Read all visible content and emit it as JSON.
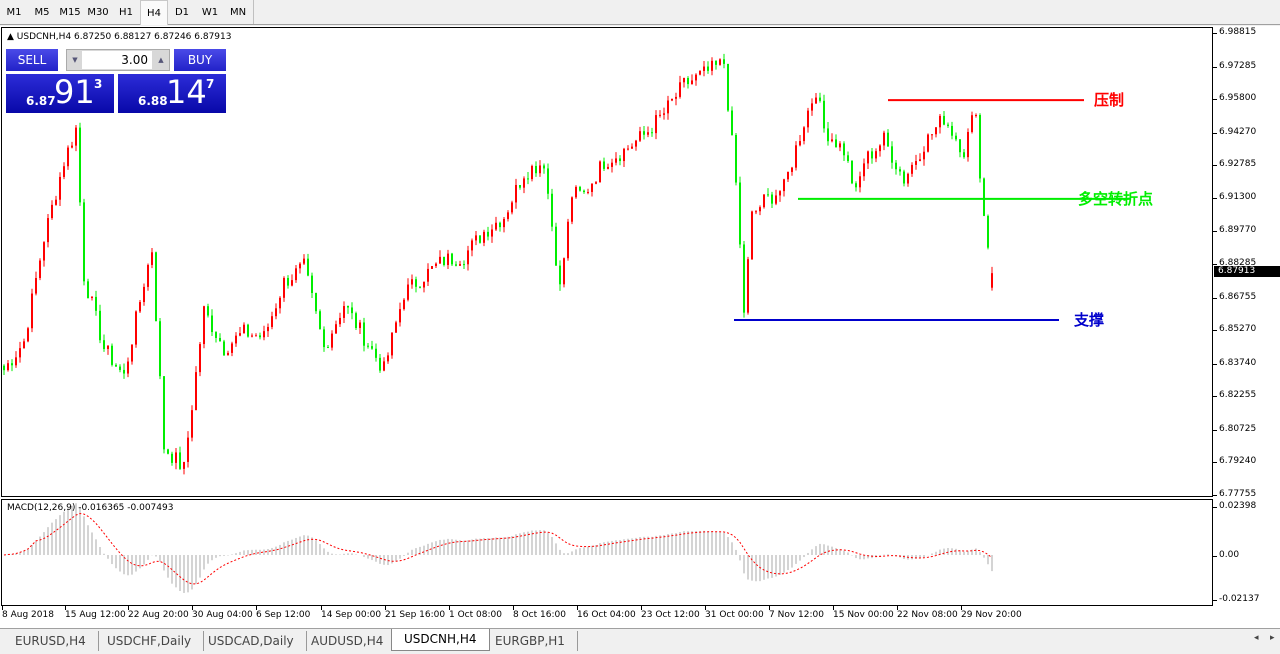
{
  "timeframes": [
    "M1",
    "M5",
    "M15",
    "M30",
    "H1",
    "H4",
    "D1",
    "W1",
    "MN"
  ],
  "active_timeframe": "H4",
  "chart": {
    "symbol_line": "USDCNH,H4  6.87250 6.88127 6.87246 6.87913",
    "collapse_icon": "triangle-up-icon"
  },
  "trade_panel": {
    "sell_label": "SELL",
    "buy_label": "BUY",
    "lot": "3.00",
    "sell_price_prefix": "6.87",
    "sell_price_big": "91",
    "sell_price_sup": "3",
    "buy_price_prefix": "6.88",
    "buy_price_big": "14",
    "buy_price_sup": "7"
  },
  "price_axis": [
    "6.98815",
    "6.97285",
    "6.95800",
    "6.94270",
    "6.92785",
    "6.91300",
    "6.89770",
    "6.88285",
    "6.86755",
    "6.85270",
    "6.83740",
    "6.82255",
    "6.80725",
    "6.79240",
    "6.77755"
  ],
  "current_price": "6.87913",
  "macd": {
    "label": "MACD(12,26,9) -0.016365 -0.007493",
    "axis": [
      "0.02398",
      "0.00",
      "-0.02137"
    ]
  },
  "date_axis": [
    "8 Aug 2018",
    "15 Aug 12:00",
    "22 Aug 20:00",
    "30 Aug 04:00",
    "6 Sep 12:00",
    "14 Sep 00:00",
    "21 Sep 16:00",
    "1 Oct 08:00",
    "8 Oct 16:00",
    "16 Oct 04:00",
    "23 Oct 12:00",
    "31 Oct 00:00",
    "7 Nov 12:00",
    "15 Nov 00:00",
    "22 Nov 08:00",
    "29 Nov 20:00"
  ],
  "annotations": [
    {
      "label": "压制",
      "price": 6.958,
      "color": "#ff0000"
    },
    {
      "label": "多空转折点",
      "price": 6.913,
      "color": "#00ee00"
    },
    {
      "label": "支撑",
      "price": 6.8578,
      "color": "#0000cc"
    }
  ],
  "chart_data": {
    "type": "candlestick",
    "ylim": [
      6.77755,
      6.98815
    ],
    "up_color": "#ff0000",
    "down_color": "#00ee00",
    "close_waypoints": [
      [
        0,
        6.835
      ],
      [
        5,
        6.848
      ],
      [
        10,
        6.895
      ],
      [
        15,
        6.93
      ],
      [
        18,
        6.945
      ],
      [
        20,
        6.878
      ],
      [
        25,
        6.845
      ],
      [
        30,
        6.832
      ],
      [
        35,
        6.875
      ],
      [
        37,
        6.89
      ],
      [
        40,
        6.8
      ],
      [
        45,
        6.79
      ],
      [
        50,
        6.862
      ],
      [
        55,
        6.845
      ],
      [
        60,
        6.852
      ],
      [
        65,
        6.85
      ],
      [
        70,
        6.875
      ],
      [
        75,
        6.882
      ],
      [
        80,
        6.845
      ],
      [
        85,
        6.865
      ],
      [
        90,
        6.85
      ],
      [
        95,
        6.835
      ],
      [
        100,
        6.87
      ],
      [
        105,
        6.878
      ],
      [
        110,
        6.885
      ],
      [
        115,
        6.887
      ],
      [
        120,
        6.898
      ],
      [
        125,
        6.905
      ],
      [
        130,
        6.925
      ],
      [
        135,
        6.93
      ],
      [
        139,
        6.872
      ],
      [
        142,
        6.915
      ],
      [
        145,
        6.915
      ],
      [
        150,
        6.93
      ],
      [
        155,
        6.935
      ],
      [
        160,
        6.942
      ],
      [
        165,
        6.952
      ],
      [
        170,
        6.965
      ],
      [
        175,
        6.97
      ],
      [
        180,
        6.975
      ],
      [
        183,
        6.92
      ],
      [
        185,
        6.862
      ],
      [
        187,
        6.905
      ],
      [
        190,
        6.912
      ],
      [
        195,
        6.918
      ],
      [
        200,
        6.948
      ],
      [
        203,
        6.963
      ],
      [
        205,
        6.945
      ],
      [
        210,
        6.935
      ],
      [
        213,
        6.915
      ],
      [
        215,
        6.93
      ],
      [
        220,
        6.94
      ],
      [
        225,
        6.922
      ],
      [
        230,
        6.938
      ],
      [
        235,
        6.95
      ],
      [
        240,
        6.935
      ],
      [
        243,
        6.955
      ],
      [
        244,
        6.922
      ],
      [
        246,
        6.892
      ],
      [
        247,
        6.879
      ]
    ]
  }
}
